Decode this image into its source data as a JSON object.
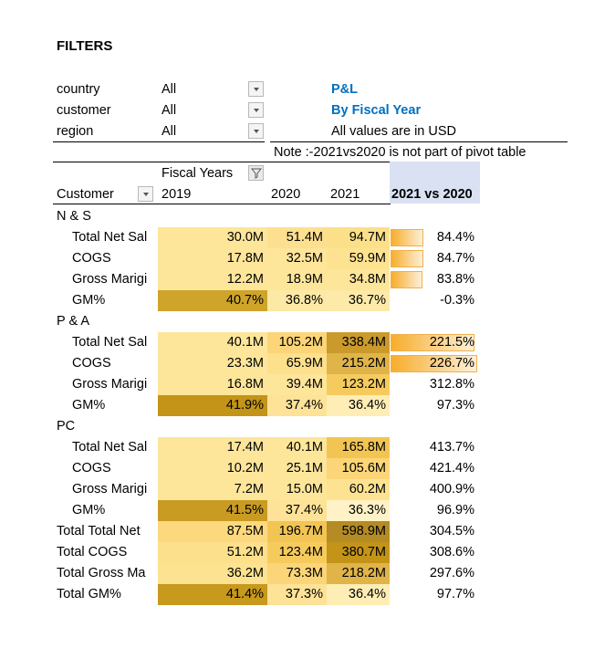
{
  "filters": {
    "title": "FILTERS",
    "items": [
      {
        "label": "country",
        "value": "All"
      },
      {
        "label": "customer",
        "value": "All"
      },
      {
        "label": "region",
        "value": "All"
      }
    ]
  },
  "info": {
    "title": "P&L",
    "subtitle": "By Fiscal Year",
    "currency_note": "All values are in USD",
    "note": "Note :-2021vs2020 is not part of pivot table"
  },
  "pivot": {
    "fiscal_years_label": "Fiscal Years",
    "customer_header": "Customer",
    "years": [
      "2019",
      "2020",
      "2021"
    ],
    "compare_header": "2021 vs 2020",
    "rows": [
      {
        "type": "group",
        "label": "N & S"
      },
      {
        "type": "data",
        "label": "Total Net Sal",
        "v": [
          "30.0M",
          "51.4M",
          "94.7M"
        ],
        "cmp": "84.4%",
        "bar": 0.37,
        "c": [
          "#fde59a",
          "#fde08f",
          "#fbe089"
        ]
      },
      {
        "type": "data",
        "label": "COGS",
        "v": [
          "17.8M",
          "32.5M",
          "59.9M"
        ],
        "cmp": "84.7%",
        "bar": 0.37,
        "c": [
          "#fde59a",
          "#fde59a",
          "#fde391"
        ]
      },
      {
        "type": "data",
        "label": "Gross Marigi",
        "v": [
          "12.2M",
          "18.9M",
          "34.8M"
        ],
        "cmp": "83.8%",
        "bar": 0.36,
        "c": [
          "#fde59a",
          "#fde59a",
          "#fde59a"
        ]
      },
      {
        "type": "data",
        "label": "GM%",
        "v": [
          "40.7%",
          "36.8%",
          "36.7%"
        ],
        "cmp": "-0.3%",
        "bar": 0,
        "c": [
          "#cfa42a",
          "#fde9a6",
          "#fdeaa8"
        ]
      },
      {
        "type": "group",
        "label": "P & A"
      },
      {
        "type": "data",
        "label": "Total Net Sal",
        "v": [
          "40.1M",
          "105.2M",
          "338.4M"
        ],
        "cmp": "221.5%",
        "bar": 0.96,
        "c": [
          "#fde59a",
          "#fbd577",
          "#ca9a2c"
        ]
      },
      {
        "type": "data",
        "label": "COGS",
        "v": [
          "23.3M",
          "65.9M",
          "215.2M"
        ],
        "cmp": "226.7%",
        "bar": 0.99,
        "c": [
          "#fde59a",
          "#fde08c",
          "#e0b449"
        ]
      },
      {
        "type": "data",
        "label": "Gross Marigi",
        "v": [
          "16.8M",
          "39.4M",
          "123.2M"
        ],
        "cmp": "312.8%",
        "bar": 0,
        "c": [
          "#fde59a",
          "#fde59a",
          "#f6cb5e"
        ]
      },
      {
        "type": "data",
        "label": "GM%",
        "v": [
          "41.9%",
          "37.4%",
          "36.4%"
        ],
        "cmp": "97.3%",
        "bar": 0,
        "c": [
          "#c39417",
          "#fde298",
          "#feedb5"
        ]
      },
      {
        "type": "group",
        "label": "PC"
      },
      {
        "type": "data",
        "label": "Total Net Sal",
        "v": [
          "17.4M",
          "40.1M",
          "165.8M"
        ],
        "cmp": "413.7%",
        "bar": 0,
        "c": [
          "#fde59a",
          "#fde59a",
          "#f2c553"
        ]
      },
      {
        "type": "data",
        "label": "COGS",
        "v": [
          "10.2M",
          "25.1M",
          "105.6M"
        ],
        "cmp": "421.4%",
        "bar": 0,
        "c": [
          "#fde59a",
          "#fde59a",
          "#fbd577"
        ]
      },
      {
        "type": "data",
        "label": "Gross Marigi",
        "v": [
          "7.2M",
          "15.0M",
          "60.2M"
        ],
        "cmp": "400.9%",
        "bar": 0,
        "c": [
          "#fde59a",
          "#fde59a",
          "#fde391"
        ]
      },
      {
        "type": "data",
        "label": "GM%",
        "v": [
          "41.5%",
          "37.4%",
          "36.3%"
        ],
        "cmp": "96.9%",
        "bar": 0,
        "c": [
          "#c99b22",
          "#fde298",
          "#fff2c6"
        ]
      },
      {
        "type": "data",
        "top": true,
        "label": "Total Total Net",
        "v": [
          "87.5M",
          "196.7M",
          "598.9M"
        ],
        "cmp": "304.5%",
        "bar": 0,
        "c": [
          "#fdd97e",
          "#f2c553",
          "#b48b24"
        ]
      },
      {
        "type": "data",
        "top": true,
        "label": "Total COGS",
        "v": [
          "51.2M",
          "123.4M",
          "380.7M"
        ],
        "cmp": "308.6%",
        "bar": 0,
        "c": [
          "#fde08c",
          "#f6cb5e",
          "#c39417"
        ]
      },
      {
        "type": "data",
        "top": true,
        "label": "Total Gross Ma",
        "v": [
          "36.2M",
          "73.3M",
          "218.2M"
        ],
        "cmp": "297.6%",
        "bar": 0,
        "c": [
          "#fde391",
          "#fbd577",
          "#e0b449"
        ]
      },
      {
        "type": "data",
        "top": true,
        "label": "Total GM%",
        "v": [
          "41.4%",
          "37.3%",
          "36.4%"
        ],
        "cmp": "97.7%",
        "bar": 0,
        "c": [
          "#c7991c",
          "#fde298",
          "#feedb5"
        ]
      }
    ]
  }
}
